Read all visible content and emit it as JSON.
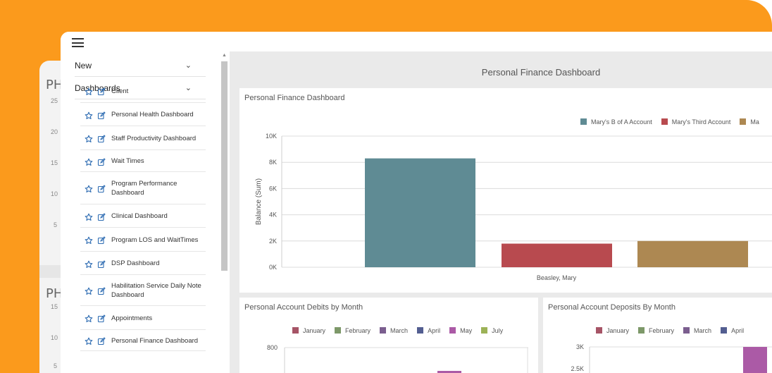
{
  "ghost": {
    "labels": [
      "PH",
      "PH"
    ],
    "ticks_top": [
      "25",
      "20",
      "15",
      "10",
      "5"
    ],
    "ticks_bottom": [
      "15",
      "10",
      "5"
    ]
  },
  "sidebar": {
    "new_label": "New",
    "dashboards_label": "Dashboards",
    "items": [
      {
        "label": "Client"
      },
      {
        "label": "Personal Health Dashboard"
      },
      {
        "label": "Staff Productivity Dashboard"
      },
      {
        "label": "Wait Times"
      },
      {
        "label": "Program Performance Dashboard"
      },
      {
        "label": "Clinical Dashboard"
      },
      {
        "label": "Program LOS and WaitTimes"
      },
      {
        "label": "DSP Dashboard"
      },
      {
        "label": "Habilitation Service Daily Note Dashboard"
      },
      {
        "label": "Appointments"
      },
      {
        "label": "Personal Finance Dashboard"
      }
    ]
  },
  "content": {
    "title": "Personal Finance Dashboard"
  },
  "colors": {
    "accent": "#2f6db3",
    "brand_bg": "#fb9a1c"
  },
  "chart_data": [
    {
      "type": "bar",
      "title": "Personal Finance Dashboard",
      "ylabel": "Balance (Sum)",
      "xlabel": "",
      "categories": [
        "Beasley, Mary"
      ],
      "yticks": [
        "0K",
        "2K",
        "4K",
        "6K",
        "8K",
        "10K"
      ],
      "ylim": [
        0,
        10000
      ],
      "legend_position": "top-right",
      "series": [
        {
          "name": "Mary's B of A Account",
          "color": "#5f8b94",
          "values": [
            8300
          ]
        },
        {
          "name": "Mary's Third Account",
          "color": "#b84a4f",
          "values": [
            1800
          ]
        },
        {
          "name": "Ma",
          "color": "#ad8852",
          "values": [
            2000
          ]
        }
      ]
    },
    {
      "type": "bar",
      "title": "Personal Account Debits by Month",
      "yticks": [
        "800"
      ],
      "ylim": [
        0,
        800
      ],
      "series": [
        {
          "name": "January",
          "color": "#a65466"
        },
        {
          "name": "February",
          "color": "#7d9869"
        },
        {
          "name": "March",
          "color": "#7b5e8f"
        },
        {
          "name": "April",
          "color": "#535e91"
        },
        {
          "name": "May",
          "color": "#ab5aa6"
        },
        {
          "name": "July",
          "color": "#9cb257"
        }
      ]
    },
    {
      "type": "bar",
      "title": "Personal Account Deposits By Month",
      "yticks": [
        "2.5K",
        "3K"
      ],
      "ylim": [
        2300,
        3000
      ],
      "series": [
        {
          "name": "January",
          "color": "#a65466"
        },
        {
          "name": "February",
          "color": "#7d9869"
        },
        {
          "name": "March",
          "color": "#7b5e8f"
        },
        {
          "name": "April",
          "color": "#535e91"
        }
      ]
    }
  ]
}
